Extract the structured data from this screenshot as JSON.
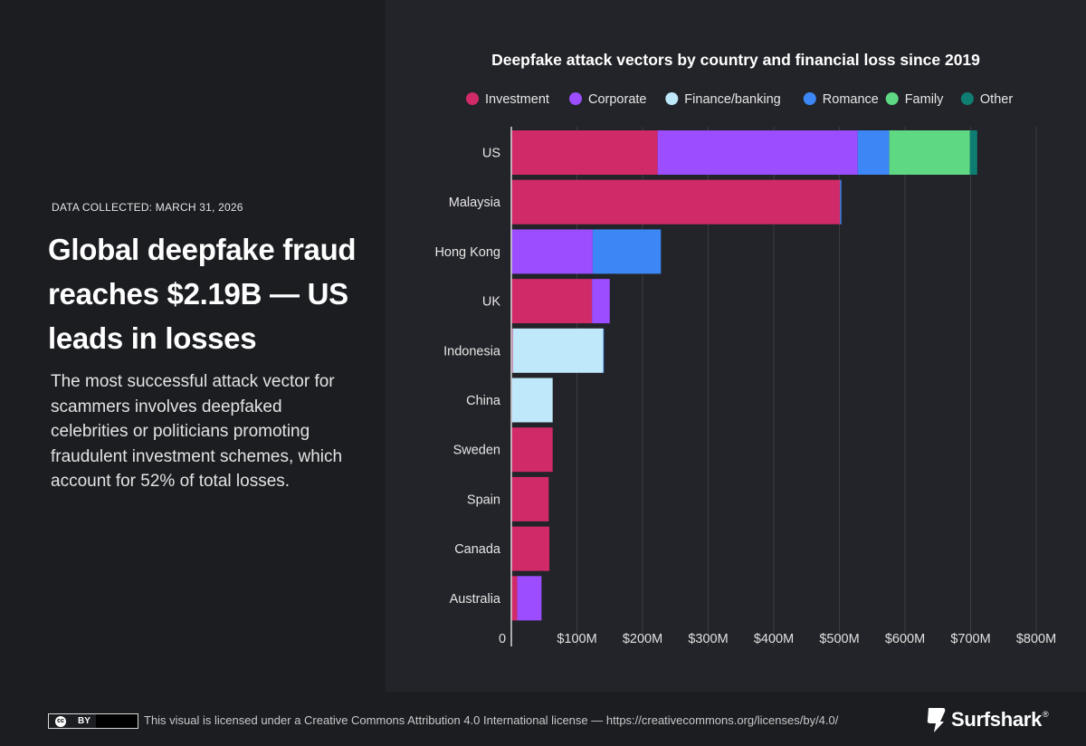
{
  "left": {
    "eyebrow": "DATA COLLECTED: MARCH 31, 2026",
    "headline": "Global deepfake fraud reaches $2.19B — US leads in losses",
    "body": "The most successful attack vector for scammers involves deepfaked celebrities or politicians promoting fraudulent investment schemes, which account for 52% of total losses."
  },
  "footer": {
    "cc_icon": "cc",
    "cc_by": "BY",
    "license": "This visual is licensed under a Creative Commons Attribution 4.0 International license — https://creativecommons.org/licenses/by/4.0/",
    "brand": "Surfshark",
    "brand_reg": "®",
    "brand_icon": "surfshark-logo-icon"
  },
  "chart_data": {
    "type": "bar",
    "orientation": "horizontal",
    "stacked": true,
    "title": "Deepfake attack vectors by country and financial loss since 2019",
    "xlabel": "",
    "ylabel": "",
    "xlim": [
      0,
      800
    ],
    "x_unit": "$M",
    "x_ticks": [
      "0",
      "$100M",
      "$200M",
      "$300M",
      "$400M",
      "$500M",
      "$600M",
      "$700M",
      "$800M"
    ],
    "grid": true,
    "legend_position": "top",
    "categories": [
      "US",
      "Malaysia",
      "Hong Kong",
      "UK",
      "Indonesia",
      "China",
      "Sweden",
      "Spain",
      "Canada",
      "Australia"
    ],
    "series": [
      {
        "name": "Investment",
        "color": "#d12a68",
        "values": [
          223,
          501,
          0,
          123,
          2,
          1,
          63,
          57,
          58,
          9
        ]
      },
      {
        "name": "Corporate",
        "color": "#9b4dff",
        "values": [
          305,
          0,
          124,
          27,
          0,
          0,
          0,
          0,
          0,
          37
        ]
      },
      {
        "name": "Finance/banking",
        "color": "#bfe8fb",
        "values": [
          0,
          0,
          0,
          0,
          138,
          62,
          0,
          0,
          0,
          0
        ]
      },
      {
        "name": "Romance",
        "color": "#3c87f5",
        "values": [
          48,
          2,
          104,
          0,
          1,
          0,
          0,
          0,
          0,
          0
        ]
      },
      {
        "name": "Family",
        "color": "#5fd884",
        "values": [
          123,
          0,
          0,
          0,
          0,
          0,
          0,
          0,
          0,
          0
        ]
      },
      {
        "name": "Other",
        "color": "#0e7e73",
        "values": [
          11,
          0,
          0,
          0,
          0,
          0,
          0,
          0,
          0,
          0
        ]
      }
    ]
  }
}
